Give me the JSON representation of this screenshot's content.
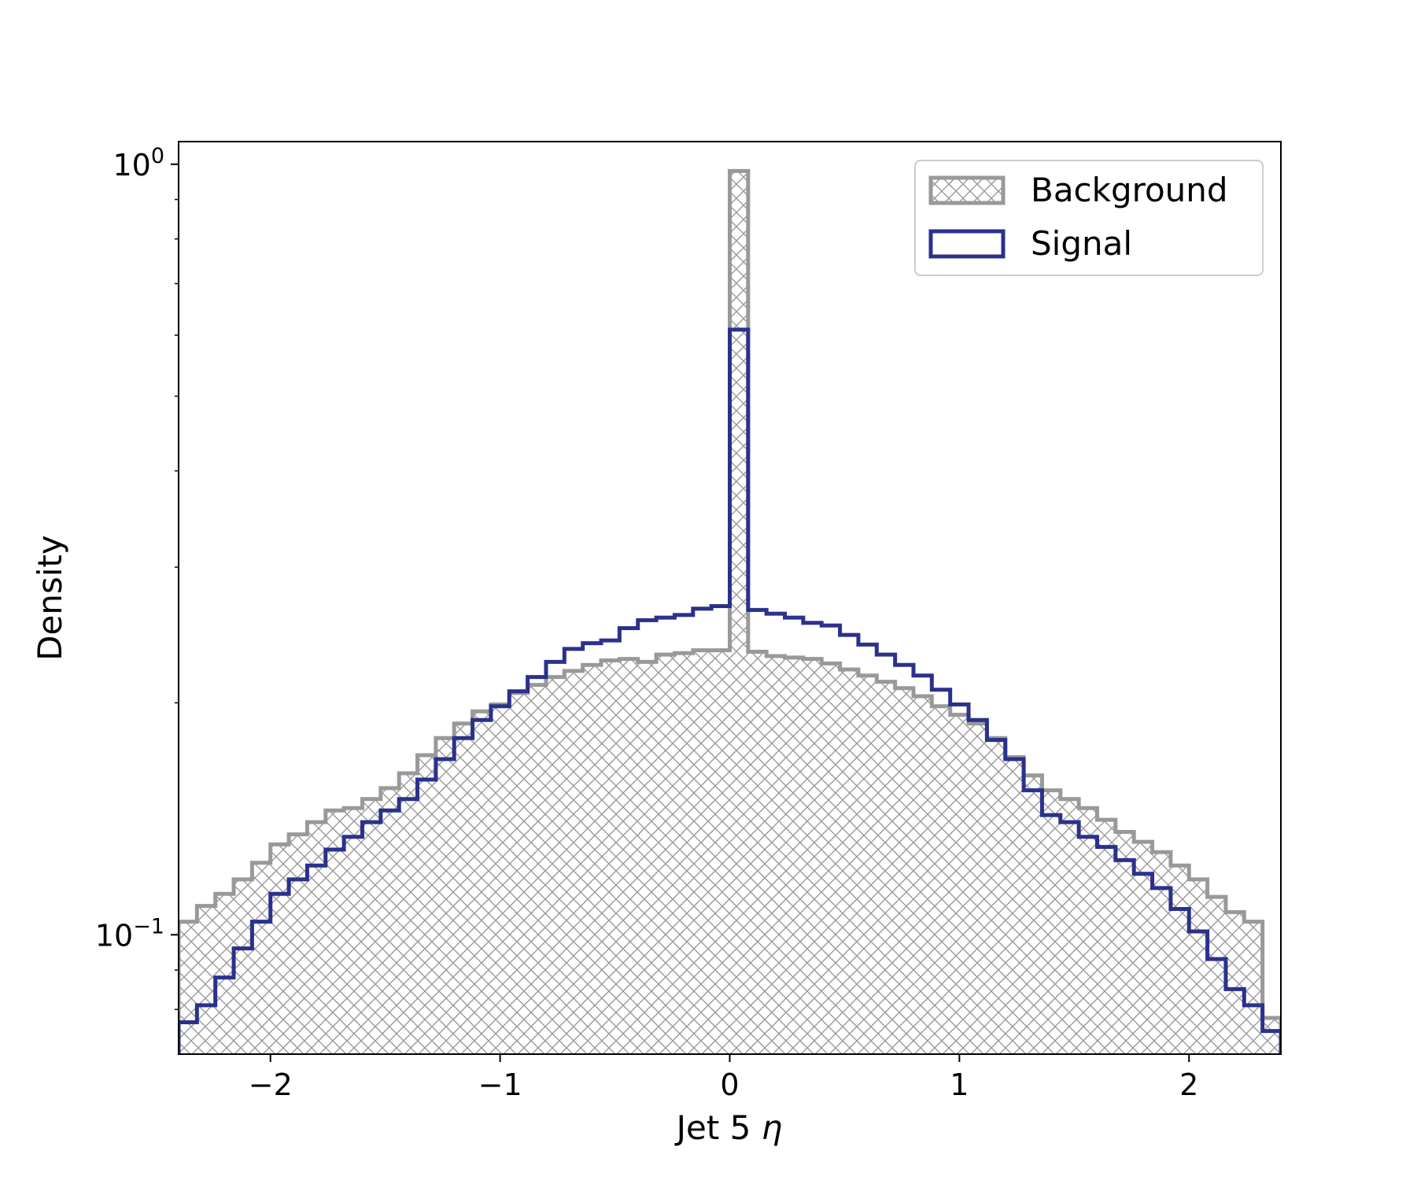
{
  "chart_data": {
    "type": "histogram",
    "xlabel_prefix": "Jet 5 ",
    "xlabel_symbol": "η",
    "ylabel": "Density",
    "xlim": [
      -2.4,
      2.4
    ],
    "ylim": [
      0.07,
      1.07
    ],
    "yscale": "log",
    "grid": false,
    "legend_position": "top-right",
    "x_ticks": [
      {
        "value": -2,
        "label": "−2"
      },
      {
        "value": -1,
        "label": "−1"
      },
      {
        "value": 0,
        "label": "0"
      },
      {
        "value": 1,
        "label": "1"
      },
      {
        "value": 2,
        "label": "2"
      }
    ],
    "y_ticks": [
      {
        "value": 1,
        "base": "10",
        "exp": "0"
      },
      {
        "value": 0.1,
        "base": "10",
        "exp": "−1"
      }
    ],
    "bin_edges": [
      -2.4,
      -2.32,
      -2.24,
      -2.16,
      -2.08,
      -2.0,
      -1.92,
      -1.84,
      -1.76,
      -1.68,
      -1.6,
      -1.52,
      -1.44,
      -1.36,
      -1.28,
      -1.2,
      -1.12,
      -1.04,
      -0.96,
      -0.88,
      -0.8,
      -0.72,
      -0.64,
      -0.56,
      -0.48,
      -0.4,
      -0.32,
      -0.24,
      -0.16,
      -0.08,
      0.0,
      0.08,
      0.16,
      0.24,
      0.32,
      0.4,
      0.48,
      0.56,
      0.64,
      0.72,
      0.8,
      0.88,
      0.96,
      1.04,
      1.12,
      1.2,
      1.28,
      1.36,
      1.44,
      1.52,
      1.6,
      1.68,
      1.76,
      1.84,
      1.92,
      2.0,
      2.08,
      2.16,
      2.24,
      2.32,
      2.4
    ],
    "series": [
      {
        "name": "Background",
        "style": "hatched",
        "color": "#999999",
        "values": [
          0.104,
          0.109,
          0.113,
          0.118,
          0.124,
          0.131,
          0.135,
          0.14,
          0.145,
          0.146,
          0.15,
          0.155,
          0.162,
          0.171,
          0.18,
          0.188,
          0.195,
          0.199,
          0.206,
          0.211,
          0.216,
          0.22,
          0.224,
          0.227,
          0.228,
          0.226,
          0.231,
          0.232,
          0.234,
          0.234,
          0.98,
          0.233,
          0.23,
          0.229,
          0.228,
          0.225,
          0.221,
          0.217,
          0.213,
          0.209,
          0.204,
          0.198,
          0.193,
          0.188,
          0.18,
          0.17,
          0.161,
          0.154,
          0.15,
          0.146,
          0.141,
          0.136,
          0.132,
          0.128,
          0.123,
          0.118,
          0.112,
          0.107,
          0.104,
          0.078
        ]
      },
      {
        "name": "Signal",
        "style": "step",
        "color": "#2b318b",
        "values": [
          0.077,
          0.081,
          0.088,
          0.096,
          0.104,
          0.113,
          0.118,
          0.123,
          0.129,
          0.134,
          0.14,
          0.145,
          0.15,
          0.159,
          0.169,
          0.18,
          0.19,
          0.198,
          0.207,
          0.216,
          0.226,
          0.235,
          0.239,
          0.241,
          0.25,
          0.256,
          0.258,
          0.26,
          0.265,
          0.267,
          0.61,
          0.264,
          0.261,
          0.258,
          0.254,
          0.252,
          0.245,
          0.238,
          0.231,
          0.224,
          0.217,
          0.208,
          0.199,
          0.19,
          0.179,
          0.169,
          0.154,
          0.143,
          0.14,
          0.134,
          0.13,
          0.125,
          0.12,
          0.115,
          0.108,
          0.101,
          0.093,
          0.085,
          0.081,
          0.075
        ]
      }
    ]
  }
}
